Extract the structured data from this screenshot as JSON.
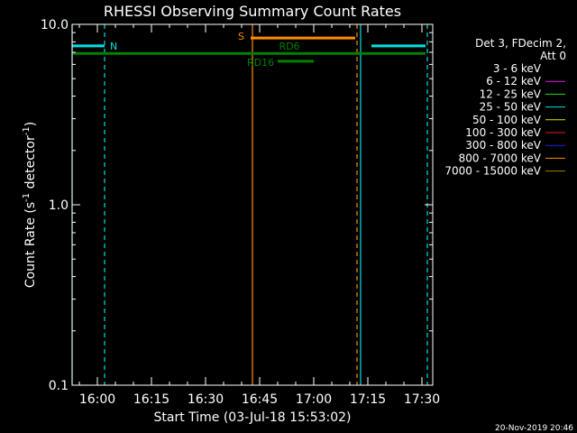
{
  "chart_data": {
    "type": "line",
    "title": "RHESSI Observing Summary Count Rates",
    "xlabel": "Start Time (03-Jul-18 15:53:02)",
    "ylabel_main": "Count Rate (s",
    "ylabel_sup1": "-1",
    "ylabel_mid": " detector",
    "ylabel_sup2": "-1",
    "ylabel_end": ")",
    "yscale": "log",
    "ylim": [
      0.1,
      10.0
    ],
    "xlim_minutes": [
      953,
      1053
    ],
    "x_ticks": [
      {
        "label": "16:00",
        "minute": 960
      },
      {
        "label": "16:15",
        "minute": 975
      },
      {
        "label": "16:30",
        "minute": 990
      },
      {
        "label": "16:45",
        "minute": 1005
      },
      {
        "label": "17:00",
        "minute": 1020
      },
      {
        "label": "17:15",
        "minute": 1035
      },
      {
        "label": "17:30",
        "minute": 1050
      }
    ],
    "y_ticks": [
      {
        "label": "10.0",
        "value": 10.0
      },
      {
        "label": "1.0",
        "value": 1.0
      },
      {
        "label": "0.1",
        "value": 0.1
      }
    ],
    "legend": {
      "header1": "Det 3, FDecim 2,",
      "header2": "Att 0",
      "entries": [
        {
          "label": "3 - 6 keV",
          "color": "#000000"
        },
        {
          "label": "6 - 12 keV",
          "color": "#e020e0"
        },
        {
          "label": "12 - 25 keV",
          "color": "#20e020"
        },
        {
          "label": "25 - 50 keV",
          "color": "#00e0e0"
        },
        {
          "label": "50 - 100 keV",
          "color": "#e0e000"
        },
        {
          "label": "100 - 300 keV",
          "color": "#e02020"
        },
        {
          "label": "300 - 800 keV",
          "color": "#2020e0"
        },
        {
          "label": "800 - 7000 keV",
          "color": "#ff8c00"
        },
        {
          "label": "7000 - 15000 keV",
          "color": "#a08000"
        }
      ]
    },
    "night_bars": [
      {
        "start": 953.0,
        "end": 962.0,
        "y": 7.6
      },
      {
        "start": 1036.0,
        "end": 1051.0,
        "y": 7.6
      }
    ],
    "night_label": "N",
    "saa_bar": {
      "start": 1002.5,
      "end": 1031.5,
      "y": 8.4
    },
    "saa_label": "S",
    "decim_bars": [
      {
        "start": 953.0,
        "end": 1006.5,
        "y": 6.9
      },
      {
        "start": 1020.0,
        "end": 1051.0,
        "y": 6.9
      }
    ],
    "rd6_bar": {
      "start": 1006.5,
      "end": 1020.0,
      "y": 6.9
    },
    "rd6_label": "RD6",
    "rd16_bar": {
      "start": 1010.0,
      "end": 1020.0,
      "y": 6.25
    },
    "rd16_label": "RD16",
    "vlines": [
      {
        "minute": 953.0,
        "color": "#00e0e0",
        "style": "solid"
      },
      {
        "minute": 962.0,
        "color": "#00e0e0",
        "style": "dashed"
      },
      {
        "minute": 1003.0,
        "color": "#ff8c00",
        "style": "solid"
      },
      {
        "minute": 1032.0,
        "color": "#ff8c00",
        "style": "dashed"
      },
      {
        "minute": 1033.0,
        "color": "#00e0e0",
        "style": "solid"
      },
      {
        "minute": 1051.5,
        "color": "#00e0e0",
        "style": "dashed"
      }
    ],
    "night_color": "#00e0e0",
    "saa_color": "#ff8c00",
    "decim_color": "#008000"
  },
  "footer": {
    "timestamp": "20-Nov-2019 20:46"
  }
}
